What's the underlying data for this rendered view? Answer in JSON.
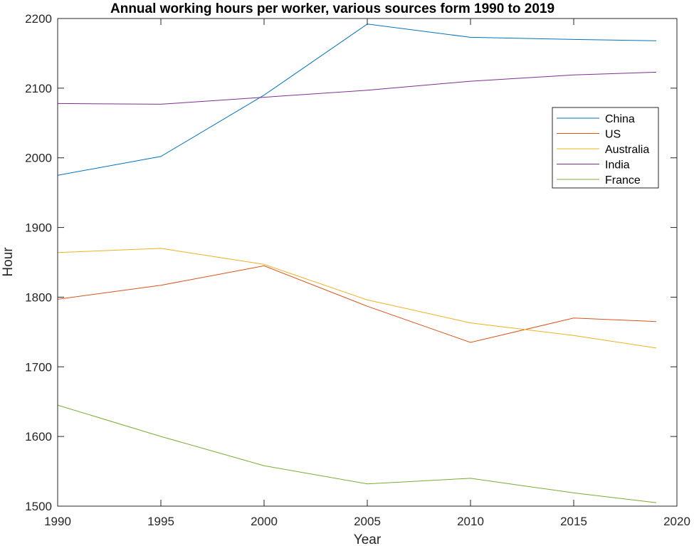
{
  "chart_data": {
    "type": "line",
    "title": "Annual working hours per worker, various sources form 1990 to 2019",
    "xlabel": "Year",
    "ylabel": "Hour",
    "xlim": [
      1990,
      2020
    ],
    "ylim": [
      1500,
      2200
    ],
    "xticks": [
      1990,
      1995,
      2000,
      2005,
      2010,
      2015,
      2020
    ],
    "yticks": [
      1500,
      1600,
      1700,
      1800,
      1900,
      2000,
      2100,
      2200
    ],
    "x": [
      1990,
      1995,
      2000,
      2005,
      2010,
      2015,
      2019
    ],
    "grid": false,
    "legend_position": "top-right",
    "series": [
      {
        "name": "China",
        "color": "#0072BD",
        "values": [
          1975,
          2002,
          2090,
          2192,
          2173,
          2170,
          2168
        ]
      },
      {
        "name": "US",
        "color": "#D95319",
        "values": [
          1797,
          1817,
          1845,
          1787,
          1735,
          1770,
          1765
        ]
      },
      {
        "name": "Australia",
        "color": "#EDB120",
        "values": [
          1864,
          1870,
          1847,
          1796,
          1763,
          1745,
          1727
        ]
      },
      {
        "name": "India",
        "color": "#7E2F8E",
        "values": [
          2078,
          2077,
          2087,
          2097,
          2110,
          2119,
          2123
        ]
      },
      {
        "name": "France",
        "color": "#77AC30",
        "values": [
          1645,
          1600,
          1558,
          1532,
          1540,
          1519,
          1505
        ]
      }
    ]
  }
}
